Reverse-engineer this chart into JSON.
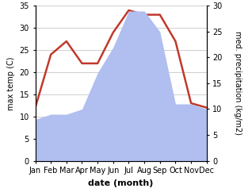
{
  "months": [
    "Jan",
    "Feb",
    "Mar",
    "Apr",
    "May",
    "Jun",
    "Jul",
    "Aug",
    "Sep",
    "Oct",
    "Nov",
    "Dec"
  ],
  "temperature": [
    12,
    24,
    27,
    22,
    22,
    29,
    34,
    33,
    33,
    27,
    13,
    12
  ],
  "precipitation": [
    8,
    9,
    9,
    10,
    17,
    22,
    29,
    29,
    25,
    11,
    11,
    10
  ],
  "temp_color": "#c0392b",
  "precip_color": "#b0bef0",
  "temp_ylim": [
    0,
    35
  ],
  "precip_ylim": [
    0,
    30
  ],
  "xlabel": "date (month)",
  "ylabel_left": "max temp (C)",
  "ylabel_right": "med. precipitation (kg/m2)",
  "bg_color": "#ffffff",
  "grid_color": "#bbbbbb",
  "label_fontsize": 8,
  "tick_fontsize": 7
}
